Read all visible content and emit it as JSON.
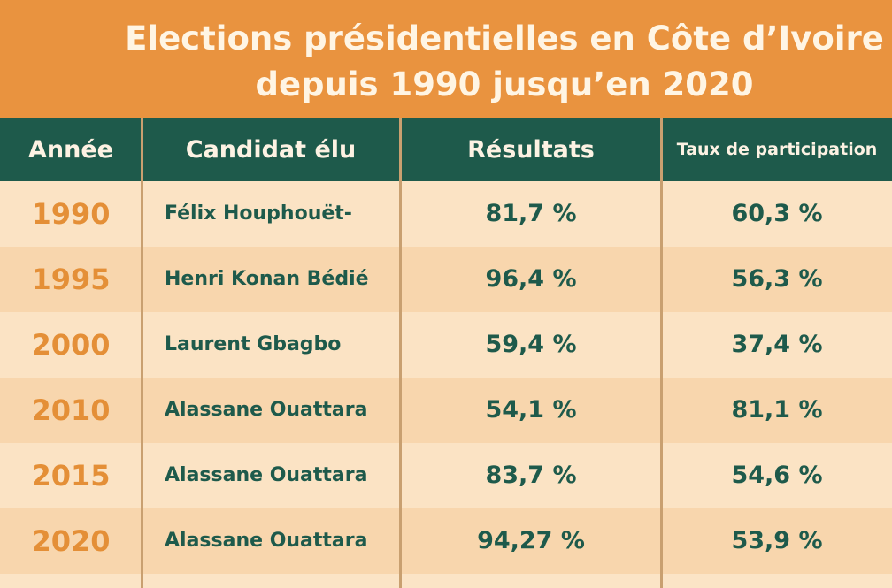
{
  "chart_data": {
    "type": "table",
    "title_line1": "Elections présidentielles en Côte d’Ivoire",
    "title_line2": "depuis 1990 jusqu’en 2020",
    "columns": [
      "Année",
      "Candidat élu",
      "Résultats",
      "Taux de participation"
    ],
    "rows": [
      {
        "year": "1990",
        "candidate": "Félix Houphouët-",
        "result": "81,7 %",
        "participation": "60,3 %"
      },
      {
        "year": "1995",
        "candidate": "Henri Konan Bédié",
        "result": "96,4 %",
        "participation": "56,3 %"
      },
      {
        "year": "2000",
        "candidate": "Laurent Gbagbo",
        "result": "59,4 %",
        "participation": "37,4 %"
      },
      {
        "year": "2010",
        "candidate": "Alassane Ouattara",
        "result": "54,1 %",
        "participation": "81,1 %"
      },
      {
        "year": "2015",
        "candidate": "Alassane Ouattara",
        "result": "83,7 %",
        "participation": "54,6 %"
      },
      {
        "year": "2020",
        "candidate": "Alassane Ouattara",
        "result": "94,27 %",
        "participation": "53,9 %"
      }
    ]
  },
  "colors": {
    "title_band": "#e9933f",
    "header": "#1e5a4b",
    "year_text": "#e48f37",
    "body_text": "#1e5a4b",
    "row_light": "#fbe3c4",
    "row_dark": "#f8d6ad"
  }
}
